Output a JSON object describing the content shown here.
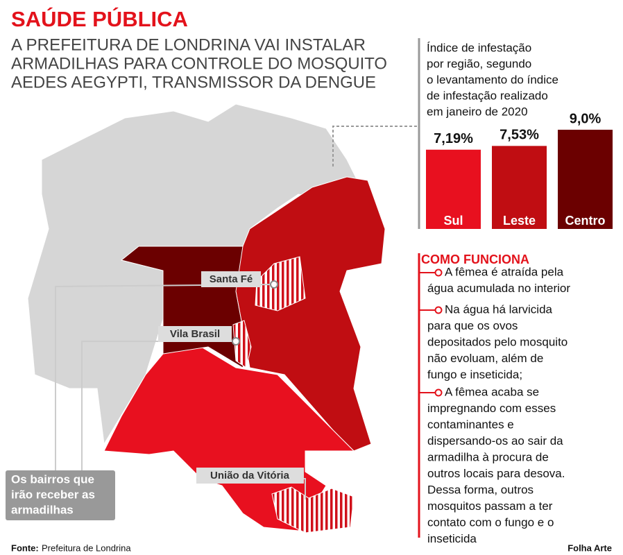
{
  "header": {
    "title": "SAÚDE PÚBLICA",
    "subtitle_lines": [
      "A PREFEITURA DE LONDRINA VAI INSTALAR",
      "ARMADILHAS PARA CONTROLE DO MOSQUITO",
      "AEDES AEGYPTI, TRANSMISSOR DA DENGUE"
    ]
  },
  "chart_data": {
    "type": "bar",
    "title_lines": [
      "Índice de infestação",
      "por região, segundo",
      "o levantamento do índice",
      "de infestação realizado",
      "em janeiro de 2020"
    ],
    "categories": [
      "Sul",
      "Leste",
      "Centro"
    ],
    "values": [
      7.19,
      7.53,
      9.0
    ],
    "value_labels": [
      "7,19%",
      "7,53%",
      "9,0%"
    ],
    "colors": [
      "#e8101f",
      "#c00d12",
      "#6b0000"
    ]
  },
  "map": {
    "labels": [
      "Santa Fé",
      "Vila Brasil",
      "União da Vitória"
    ],
    "legend_lines": [
      "Os bairros que",
      "irão receber as",
      "armadilhas"
    ]
  },
  "how_it_works": {
    "heading": "COMO FUNCIONA",
    "items": [
      {
        "lines": [
          "A fêmea é atraída pela",
          "água acumulada no interior"
        ]
      },
      {
        "lines": [
          "Na água há larvicida",
          "para que os ovos",
          "depositados pelo mosquito",
          "não evoluam, além de",
          "fungo e inseticida;"
        ]
      },
      {
        "lines": [
          "A fêmea acaba se",
          "impregnando com esses",
          "contaminantes e",
          "dispersando-os ao sair da",
          "armadilha à procura de",
          "outros locais para desova.",
          "Dessa forma, outros",
          "mosquitos passam a ter",
          "contato com o fungo e o",
          "inseticida"
        ]
      }
    ]
  },
  "footer": {
    "source_label": "Fonte:",
    "source": "Prefeitura de Londrina",
    "credit": "Folha Arte"
  }
}
